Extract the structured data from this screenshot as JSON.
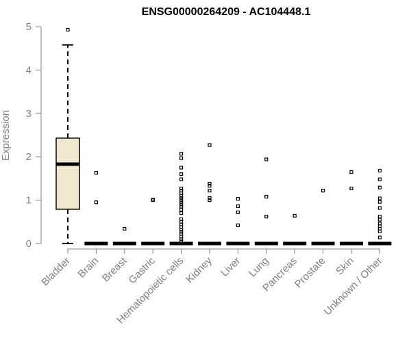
{
  "chart_data": {
    "type": "boxplot",
    "title": "ENSG00000264209 - AC104448.1",
    "ylabel": "Expression",
    "xlabel": "",
    "ylim": [
      0,
      5
    ],
    "yticks": [
      0,
      1,
      2,
      3,
      4,
      5
    ],
    "grid": false,
    "legend": "none",
    "box_fill": "#efe8cf",
    "categories": [
      "Bladder",
      "Brain",
      "Breast",
      "Gastric",
      "Hematopoietic cells",
      "Kidney",
      "Liver",
      "Lung",
      "Pancreas",
      "Prostate",
      "Skin",
      "Unknown / Other"
    ],
    "boxes": [
      {
        "category": "Bladder",
        "min": 0.0,
        "q1": 0.79,
        "median": 1.83,
        "q3": 2.43,
        "max": 4.58,
        "outliers": [
          4.93
        ]
      },
      {
        "category": "Brain",
        "min": 0,
        "q1": 0,
        "median": 0,
        "q3": 0,
        "max": 0,
        "outliers": [
          0.95,
          1.63
        ]
      },
      {
        "category": "Breast",
        "min": 0,
        "q1": 0,
        "median": 0,
        "q3": 0,
        "max": 0,
        "outliers": [
          0.34
        ]
      },
      {
        "category": "Gastric",
        "min": 0,
        "q1": 0,
        "median": 0,
        "q3": 0,
        "max": 0,
        "outliers": [
          1.0,
          1.01
        ]
      },
      {
        "category": "Hematopoietic cells",
        "min": 0,
        "q1": 0,
        "median": 0,
        "q3": 0,
        "max": 0,
        "outliers": [
          0.05,
          0.1,
          0.16,
          0.22,
          0.27,
          0.32,
          0.38,
          0.44,
          0.5,
          0.56,
          0.7,
          0.78,
          0.85,
          0.9,
          0.95,
          1.0,
          1.05,
          1.1,
          1.16,
          1.22,
          1.27,
          1.48,
          1.6,
          1.75,
          1.97,
          2.07
        ]
      },
      {
        "category": "Kidney",
        "min": 0,
        "q1": 0,
        "median": 0,
        "q3": 0,
        "max": 0,
        "outliers": [
          1.0,
          1.05,
          1.22,
          1.33,
          1.38,
          2.27
        ]
      },
      {
        "category": "Liver",
        "min": 0,
        "q1": 0,
        "median": 0,
        "q3": 0,
        "max": 0,
        "outliers": [
          0.42,
          0.72,
          0.86,
          1.03
        ]
      },
      {
        "category": "Lung",
        "min": 0,
        "q1": 0,
        "median": 0,
        "q3": 0,
        "max": 0,
        "outliers": [
          0.62,
          1.08,
          1.94
        ]
      },
      {
        "category": "Pancreas",
        "min": 0,
        "q1": 0,
        "median": 0,
        "q3": 0,
        "max": 0,
        "outliers": [
          0.64
        ]
      },
      {
        "category": "Prostate",
        "min": 0,
        "q1": 0,
        "median": 0,
        "q3": 0,
        "max": 0,
        "outliers": [
          1.22
        ]
      },
      {
        "category": "Skin",
        "min": 0,
        "q1": 0,
        "median": 0,
        "q3": 0,
        "max": 0,
        "outliers": [
          1.27,
          1.65
        ]
      },
      {
        "category": "Unknown / Other",
        "min": 0,
        "q1": 0,
        "median": 0,
        "q3": 0,
        "max": 0,
        "outliers": [
          0.14,
          0.28,
          0.34,
          0.4,
          0.46,
          0.55,
          0.62,
          0.82,
          0.96,
          1.04,
          1.29,
          1.48,
          1.68
        ]
      }
    ]
  }
}
